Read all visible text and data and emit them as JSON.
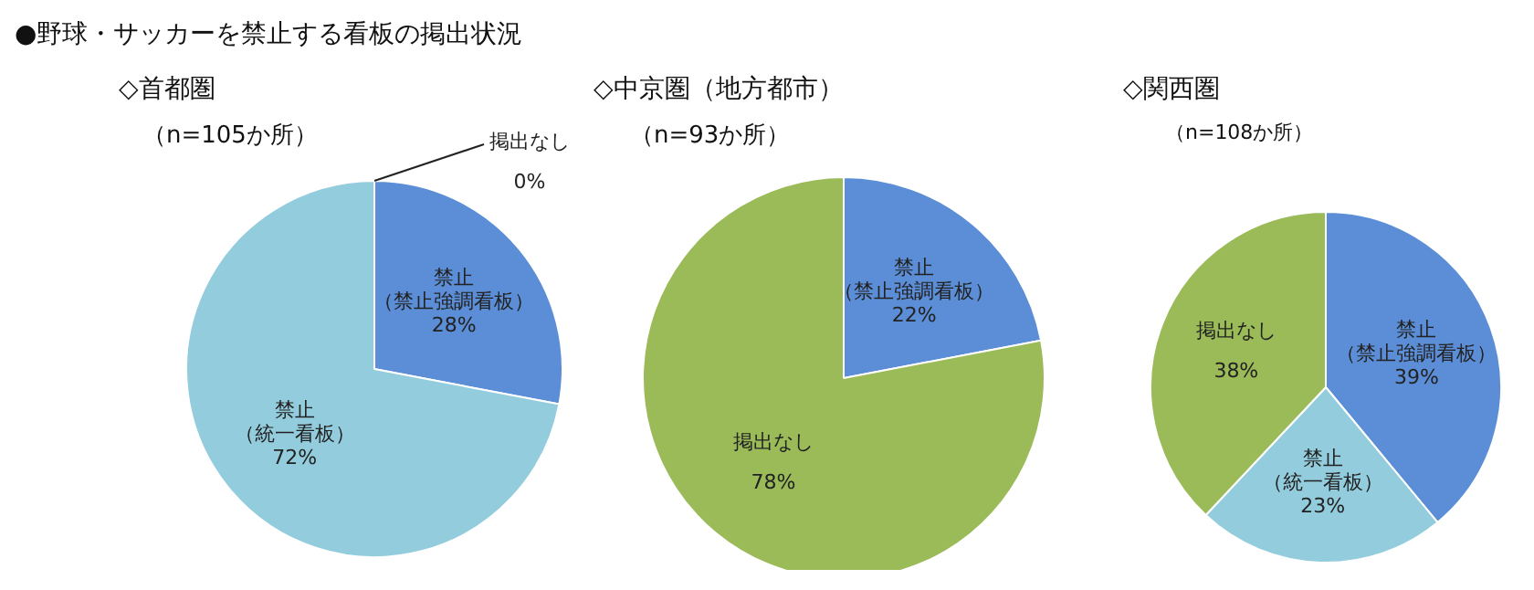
{
  "chart_data": [
    {
      "type": "pie",
      "title": "◇首都圏",
      "subtitle": "（n=105か所）",
      "annotations": [
        "●野球・サッカーを禁止する看板の掲出状況"
      ],
      "categories": [
        "禁止（禁止強調看板）",
        "禁止（統一看板）",
        "掲出なし"
      ],
      "values": [
        28,
        72,
        0
      ],
      "value_labels": [
        "28%",
        "72%",
        "0%"
      ],
      "colors": [
        "#5b8ed6",
        "#93cddd",
        "#9bbb59"
      ]
    },
    {
      "type": "pie",
      "title": "◇中京圏（地方都市）",
      "subtitle": "（n=93か所）",
      "categories": [
        "禁止（禁止強調看板）",
        "掲出なし"
      ],
      "values": [
        22,
        78
      ],
      "value_labels": [
        "22%",
        "78%"
      ],
      "colors": [
        "#5b8ed6",
        "#9bbb59"
      ]
    },
    {
      "type": "pie",
      "title": "◇関西圏",
      "subtitle": "（n=108か所）",
      "categories": [
        "禁止（禁止強調看板）",
        "禁止（統一看板）",
        "掲出なし"
      ],
      "values": [
        39,
        23,
        38
      ],
      "value_labels": [
        "39%",
        "23%",
        "38%"
      ],
      "colors": [
        "#5b8ed6",
        "#93cddd",
        "#9bbb59"
      ]
    }
  ]
}
